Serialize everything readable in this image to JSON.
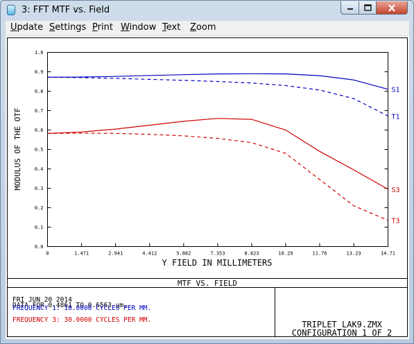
{
  "window": {
    "title": "3: FFT MTF vs. Field",
    "icon": "app-window-icon"
  },
  "menu": [
    {
      "accel": "U",
      "rest": "pdate"
    },
    {
      "accel": "S",
      "rest": "ettings"
    },
    {
      "accel": "P",
      "rest": "rint"
    },
    {
      "accel": "W",
      "rest": "indow"
    },
    {
      "accel": "T",
      "rest": "ext"
    },
    {
      "accel": "Z",
      "rest": "oom"
    }
  ],
  "chart_data": {
    "type": "line",
    "xlabel": "Y FIELD IN MILLIMETERS",
    "ylabel": "MODULUS OF THE OTF",
    "xlim": [
      0,
      14.71
    ],
    "ylim": [
      0,
      1.0
    ],
    "xticks": [
      0,
      1.471,
      2.941,
      4.412,
      5.882,
      7.353,
      8.823,
      10.29,
      11.76,
      13.23,
      14.71
    ],
    "xtick_labels": [
      "0",
      "1.471",
      "2.941",
      "4.412",
      "5.882",
      "7.353",
      "8.823",
      "10.29",
      "11.76",
      "13.23",
      "14.71"
    ],
    "yticks": [
      0,
      0.1,
      0.2,
      0.3,
      0.4,
      0.5,
      0.6,
      0.7,
      0.8,
      0.9,
      1.0
    ],
    "ytick_labels": [
      "0.0",
      "0.1",
      "0.2",
      "0.3",
      "0.4",
      "0.5",
      "0.6",
      "0.7",
      "0.8",
      "0.9",
      "1.0"
    ],
    "grid": false,
    "x": [
      0,
      1.471,
      2.941,
      4.412,
      5.882,
      7.353,
      8.823,
      10.29,
      11.76,
      13.23,
      14.71
    ],
    "series": [
      {
        "name": "S1",
        "color": "#0000c0",
        "dash": false,
        "values": [
          0.872,
          0.873,
          0.876,
          0.881,
          0.885,
          0.889,
          0.89,
          0.889,
          0.88,
          0.858,
          0.81
        ]
      },
      {
        "name": "T1",
        "color": "#0000c0",
        "dash": true,
        "values": [
          0.872,
          0.87,
          0.866,
          0.861,
          0.856,
          0.85,
          0.842,
          0.829,
          0.806,
          0.762,
          0.672
        ]
      },
      {
        "name": "S3",
        "color": "#d00000",
        "dash": false,
        "values": [
          0.583,
          0.59,
          0.605,
          0.625,
          0.645,
          0.66,
          0.655,
          0.6,
          0.49,
          0.395,
          0.295
        ]
      },
      {
        "name": "T3",
        "color": "#d00000",
        "dash": true,
        "values": [
          0.583,
          0.584,
          0.583,
          0.578,
          0.57,
          0.557,
          0.535,
          0.48,
          0.345,
          0.21,
          0.135
        ]
      }
    ]
  },
  "plot_title": "MTF VS. FIELD",
  "info": {
    "date": "FRI JUN 20 2014",
    "data_range": "DATA FOR 0.4861 TO 0.6563 µm.",
    "freq1": "FREQUENCY 1:  10.0000 CYCLES PER MM.",
    "freq3": "FREQUENCY 3:  30.0000 CYCLES PER MM.",
    "lens_file": "TRIPLET_LAK9.ZMX",
    "configuration": "CONFIGURATION 1 OF 2"
  },
  "colors": {
    "freq1": "#0000c0",
    "freq3": "#d00000"
  }
}
